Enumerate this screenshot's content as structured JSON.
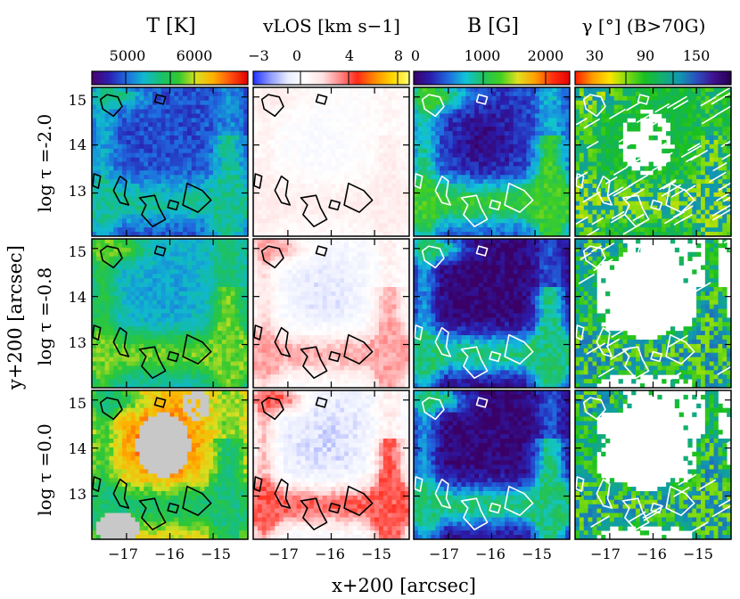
{
  "chart_data": {
    "type": "heatmap",
    "xlabel": "x+200 [arcsec]",
    "ylabel": "y+200 [arcsec]",
    "x_ticks": [
      "−17",
      "−16",
      "−15"
    ],
    "y_ticks": [
      "15",
      "14",
      "13"
    ],
    "xlim": [
      -17.8,
      -14.2
    ],
    "ylim": [
      12.1,
      15.2
    ],
    "columns": [
      {
        "title": "T [K]",
        "colormap": [
          "#4b006e",
          "#2a1fb0",
          "#1f6be0",
          "#10b8d0",
          "#19c070",
          "#30c830",
          "#d9e020",
          "#ffb000",
          "#ff5010",
          "#e00000"
        ],
        "colorbar_ticks": [
          "5000",
          "6000",
          "−3"
        ]
      },
      {
        "title": "vLOS [km s−1]",
        "colormap": [
          "#2030ff",
          "#8f9bff",
          "#e9ecff",
          "#ffffff",
          "#ffe2e2",
          "#ff8a8a",
          "#ff2a1a",
          "#ff8a00",
          "#ffd600",
          "#ffff70"
        ],
        "colorbar_ticks": [
          "0",
          "4",
          "8"
        ]
      },
      {
        "title": "B [G]",
        "colormap": [
          "#3a0066",
          "#2a1fb0",
          "#1f6be0",
          "#10c4d8",
          "#20c060",
          "#40d020",
          "#e0e020",
          "#ffa000",
          "#ff3010",
          "#e80000"
        ],
        "colorbar_ticks": [
          "0",
          "1000",
          "2000"
        ]
      },
      {
        "title": "γ [°] (B>70G)",
        "colormap": [
          "#ff1a00",
          "#ff9a00",
          "#ffe500",
          "#7fdc10",
          "#19c020",
          "#12b070",
          "#1198b0",
          "#2a50c0",
          "#401090",
          "#250050"
        ],
        "colorbar_ticks": [
          "30",
          "90",
          "150"
        ]
      }
    ],
    "rows": [
      {
        "label": "log τ =-2.0"
      },
      {
        "label": "log τ =-0.8"
      },
      {
        "label": "log τ =0.0"
      }
    ],
    "contour_color_dark": "#000000",
    "contour_color_light": "#ffffff"
  }
}
